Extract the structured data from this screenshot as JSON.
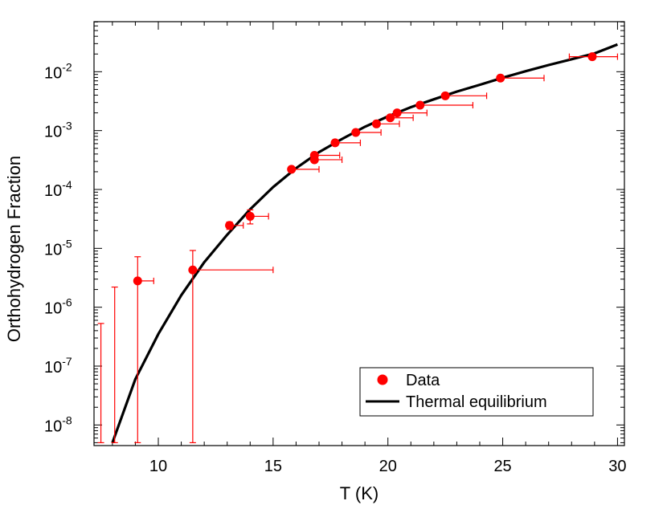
{
  "chart_data": {
    "type": "scatter",
    "title": "",
    "xlabel": "T (K)",
    "ylabel": "Orthohydrogen Fraction",
    "x_scale": "linear",
    "y_scale": "log",
    "xlim": [
      7.2,
      30.3
    ],
    "ylim_log10": [
      -8.35,
      -1.15
    ],
    "grid": false,
    "legend_position": "bottom-right",
    "x_ticks": [
      {
        "value": 10,
        "label": "10"
      },
      {
        "value": 15,
        "label": "15"
      },
      {
        "value": 20,
        "label": "20"
      },
      {
        "value": 25,
        "label": "25"
      },
      {
        "value": 30,
        "label": "30"
      }
    ],
    "y_ticks": [
      {
        "exp": -8,
        "base": "10",
        "sup": "-8"
      },
      {
        "exp": -7,
        "base": "10",
        "sup": "-7"
      },
      {
        "exp": -6,
        "base": "10",
        "sup": "-6"
      },
      {
        "exp": -5,
        "base": "10",
        "sup": "-5"
      },
      {
        "exp": -4,
        "base": "10",
        "sup": "-4"
      },
      {
        "exp": -3,
        "base": "10",
        "sup": "-3"
      },
      {
        "exp": -2,
        "base": "10",
        "sup": "-2"
      }
    ],
    "series": [
      {
        "name": "Data",
        "kind": "points",
        "color": "#ff0000",
        "points": [
          {
            "x": 9.1,
            "y": 2.8e-06,
            "x_lo": 9.1,
            "x_hi": 9.8,
            "y_lo": 5e-09,
            "y_hi": 7.2e-06
          },
          {
            "x": 11.5,
            "y": 4.3e-06,
            "x_lo": 11.5,
            "x_hi": 15.0,
            "y_lo": 5e-09,
            "y_hi": 9.2e-06
          },
          {
            "x": 13.1,
            "y": 2.45e-05,
            "x_lo": 13.1,
            "x_hi": 13.7,
            "y_lo": 2.1e-05,
            "y_hi": 2.8e-05
          },
          {
            "x": 14.0,
            "y": 3.5e-05,
            "x_lo": 14.0,
            "x_hi": 14.8,
            "y_lo": 2.6e-05,
            "y_hi": 4.5e-05
          },
          {
            "x": 15.8,
            "y": 0.00022,
            "x_lo": 15.8,
            "x_hi": 17.0,
            "y_lo": 0.0002,
            "y_hi": 0.00024
          },
          {
            "x": 16.8,
            "y": 0.00032,
            "x_lo": 16.8,
            "x_hi": 18.0,
            "y_lo": 0.00029,
            "y_hi": 0.00035
          },
          {
            "x": 16.8,
            "y": 0.00038,
            "x_lo": 16.8,
            "x_hi": 17.9,
            "y_lo": 0.00035,
            "y_hi": 0.00041
          },
          {
            "x": 17.7,
            "y": 0.00062,
            "x_lo": 17.7,
            "x_hi": 18.8,
            "y_lo": 0.00057,
            "y_hi": 0.00067
          },
          {
            "x": 18.6,
            "y": 0.00093,
            "x_lo": 18.6,
            "x_hi": 19.7,
            "y_lo": 0.00086,
            "y_hi": 0.001
          },
          {
            "x": 19.5,
            "y": 0.0013,
            "x_lo": 19.5,
            "x_hi": 20.5,
            "y_lo": 0.0012,
            "y_hi": 0.0014
          },
          {
            "x": 20.1,
            "y": 0.00165,
            "x_lo": 20.1,
            "x_hi": 21.1,
            "y_lo": 0.00155,
            "y_hi": 0.00175
          },
          {
            "x": 20.4,
            "y": 0.002,
            "x_lo": 20.4,
            "x_hi": 21.7,
            "y_lo": 0.0019,
            "y_hi": 0.0021
          },
          {
            "x": 21.4,
            "y": 0.0027,
            "x_lo": 21.4,
            "x_hi": 23.7,
            "y_lo": 0.00255,
            "y_hi": 0.00285
          },
          {
            "x": 22.5,
            "y": 0.0039,
            "x_lo": 22.5,
            "x_hi": 24.3,
            "y_lo": 0.0037,
            "y_hi": 0.0041
          },
          {
            "x": 24.9,
            "y": 0.0078,
            "x_lo": 24.9,
            "x_hi": 26.8,
            "y_lo": 0.0075,
            "y_hi": 0.0081
          },
          {
            "x": 28.9,
            "y": 0.018,
            "x_lo": 27.9,
            "x_hi": 30.0,
            "y_lo": 0.0175,
            "y_hi": 0.0185
          }
        ],
        "extra_error_bars": [
          {
            "x": 7.5,
            "y_lo": 5e-09,
            "y_hi": 5.3e-07
          },
          {
            "x": 8.1,
            "y_lo": 5e-09,
            "y_hi": 2.2e-06
          }
        ]
      },
      {
        "name": "Thermal equilibrium",
        "kind": "line",
        "color": "#000000",
        "x": [
          8.0,
          9.0,
          10.0,
          11.0,
          12.0,
          13.0,
          14.0,
          15.0,
          16.0,
          17.0,
          18.0,
          19.0,
          20.0,
          21.0,
          22.0,
          23.0,
          24.0,
          25.0,
          26.0,
          27.0,
          28.0,
          29.0,
          30.0
        ],
        "y": [
          5e-09,
          6e-08,
          3.5e-07,
          1.6e-06,
          5.8e-06,
          1.7e-05,
          4.6e-05,
          0.00011,
          0.00023,
          0.00043,
          0.00072,
          0.00116,
          0.00174,
          0.0025,
          0.0034,
          0.0046,
          0.006,
          0.0079,
          0.0102,
          0.013,
          0.0163,
          0.0205,
          0.029
        ]
      }
    ]
  }
}
